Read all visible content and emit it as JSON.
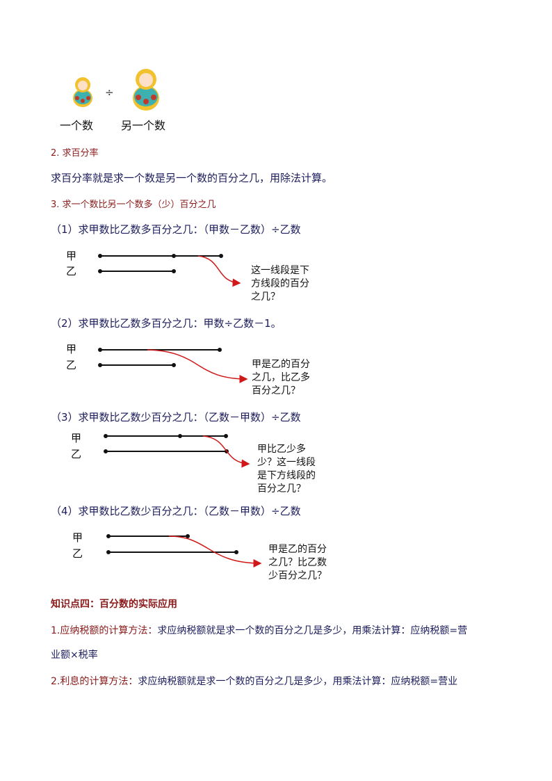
{
  "intro": {
    "divide_sign": "÷",
    "label_a": "一个数",
    "label_b": "另一个数"
  },
  "sec2": {
    "title": "2. 求百分率",
    "body": "求百分率就是求一个数是另一个数的百分之几，用除法计算。"
  },
  "sec3": {
    "title": "3. 求一个数比另一个数多（少）百分之几",
    "cases": [
      {
        "formula": "（1）求甲数比乙数多百分之几：（甲数－乙数）÷乙数",
        "a": "甲",
        "b": "乙",
        "note": "这一线段是下\n方线段的百分\n之几？"
      },
      {
        "formula": "（2）求甲数比乙数多百分之几：甲数÷乙数－1。",
        "a": "甲",
        "b": "乙",
        "note": "甲是乙的百分\n之几，比乙多\n百分之几？"
      },
      {
        "formula": "（3）求甲数比乙数少百分之几：（乙数－甲数）÷乙数",
        "a": "甲",
        "b": "乙",
        "note": "甲比乙少多\n少？这一线段\n是下方线段的\n百分之几？"
      },
      {
        "formula": "（4）求甲数比乙数少百分之几：（乙数－甲数）÷乙数",
        "a": "甲",
        "b": "乙",
        "note": "甲是乙的百分\n之几？比乙数\n少百分之几？"
      }
    ]
  },
  "sec4": {
    "title": "知识点四：百分数的实际应用",
    "item1_label": "1.应纳税额的计算方法：",
    "item1_body": "求应纳税额就是求一个数的百分之几是多少，用乘法计算：应纳税额=营",
    "item1_cont": "业额×税率",
    "item2_label": "2.利息的计算方法：",
    "item2_body": "求应纳税额就是求一个数的百分之几是多少，用乘法计算：应纳税额=营业"
  },
  "colors": {
    "heading": "#8b1a1a",
    "body": "#1c1c5c",
    "arrow": "#d01818"
  }
}
